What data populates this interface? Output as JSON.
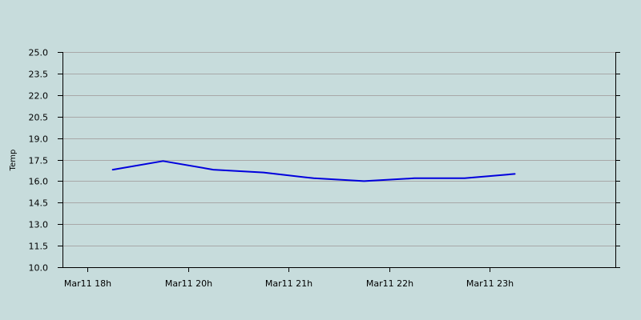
{
  "chart_data": {
    "type": "line",
    "title": "",
    "xlabel": "",
    "ylabel": "Temp",
    "ylim": [
      10.0,
      25.0
    ],
    "yticks": [
      "10.0",
      "11.5",
      "13.0",
      "14.5",
      "16.0",
      "17.5",
      "19.0",
      "20.5",
      "22.0",
      "23.5",
      "25.0"
    ],
    "xlim": [
      17.75,
      23.25
    ],
    "xticks": [
      {
        "value": 18,
        "label": "Mar11 18h"
      },
      {
        "value": 19,
        "label": "Mar11 20h"
      },
      {
        "value": 20,
        "label": "Mar11 21h"
      },
      {
        "value": 21,
        "label": "Mar11 22h"
      },
      {
        "value": 22,
        "label": "Mar11 23h"
      }
    ],
    "grid": true,
    "colors": {
      "background": "#c7dcdc",
      "grid": "#a8a8a8",
      "axis": "#000000",
      "series": "#0000dd"
    },
    "series": [
      {
        "x": [
          18.25,
          18.75,
          19.25,
          19.75,
          20.25,
          20.75,
          21.25,
          21.75,
          22.25
        ],
        "values": [
          16.8,
          17.4,
          16.8,
          16.6,
          16.2,
          16.0,
          16.2,
          16.2,
          16.5
        ]
      }
    ]
  }
}
